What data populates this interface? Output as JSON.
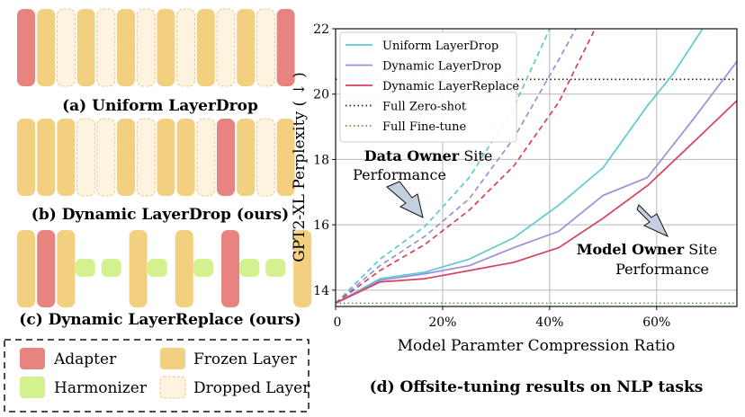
{
  "panels": {
    "a_caption": "(a) Uniform LayerDrop",
    "b_caption": "(b) Dynamic LayerDrop (ours)",
    "c_caption": "(c) Dynamic LayerReplace (ours)",
    "a_layers": [
      "adapter",
      "frozen",
      "dropped",
      "frozen",
      "dropped",
      "frozen",
      "dropped",
      "frozen",
      "dropped",
      "frozen",
      "dropped",
      "frozen",
      "dropped",
      "adapter"
    ],
    "b_layers": [
      "frozen",
      "frozen",
      "frozen",
      "dropped",
      "dropped",
      "frozen",
      "dropped",
      "frozen",
      "frozen",
      "dropped",
      "adapter",
      "frozen",
      "dropped",
      "frozen"
    ],
    "c_layers": [
      "frozen",
      "adapter",
      "frozen",
      "harmonizer",
      "harmonizer",
      "frozen",
      "harmonizer",
      "frozen",
      "harmonizer",
      "adapter",
      "harmonizer",
      "harmonizer",
      "frozen"
    ]
  },
  "legend": {
    "adapter": "Adapter",
    "frozen": "Frozen Layer",
    "harmonizer": "Harmonizer",
    "dropped": "Dropped Layer"
  },
  "colors": {
    "adapter": "#e8847f",
    "frozen": "#f3cf80",
    "harmonizer": "#d3f28f",
    "dropped": "#fdf3df",
    "dropped_border": "#eec587"
  },
  "caption_d": "(d) Offsite-tuning results on NLP tasks",
  "annotations": {
    "data_owner_bold": "Data Owner",
    "data_owner_rest": " Site",
    "data_owner_line2": "Performance",
    "model_owner_bold": "Model Owner",
    "model_owner_rest": " Site",
    "model_owner_line2": "Performance"
  },
  "chart_data": {
    "type": "line",
    "xlabel": "Model Paramter Compression Ratio",
    "ylabel": "GPT2-XL Perplexity ( ↓ )",
    "xlim": [
      0,
      75
    ],
    "ylim": [
      13.5,
      22
    ],
    "x_ticks": [
      0,
      20,
      40,
      60
    ],
    "x_tick_labels": [
      "0",
      "20%",
      "40%",
      "60%"
    ],
    "y_ticks": [
      14,
      16,
      18,
      20,
      22
    ],
    "y_tick_labels": [
      "14",
      "16",
      "18",
      "20",
      "22"
    ],
    "grid": true,
    "legend_position": "top-left",
    "series": [
      {
        "name": "Uniform LayerDrop",
        "color": "#5ec9cf",
        "solid": {
          "x": [
            0,
            8.3,
            16.7,
            25,
            33.3,
            41.7,
            50,
            58.3,
            63,
            69
          ],
          "y": [
            13.6,
            14.35,
            14.55,
            14.95,
            15.6,
            16.6,
            17.75,
            19.65,
            20.6,
            22.1
          ]
        },
        "dashed": {
          "x": [
            0,
            8.3,
            16.7,
            25,
            33.3,
            41.7
          ],
          "y": [
            13.6,
            14.95,
            15.95,
            17.45,
            19.6,
            22.6
          ]
        }
      },
      {
        "name": "Dynamic LayerDrop",
        "color": "#9b8fdc",
        "solid": {
          "x": [
            0,
            8.3,
            16.7,
            25,
            33.3,
            41.7,
            50,
            58.3,
            66.7,
            75
          ],
          "y": [
            13.6,
            14.3,
            14.5,
            14.75,
            15.3,
            15.8,
            16.9,
            17.45,
            19.2,
            21.0
          ]
        },
        "dashed": {
          "x": [
            0,
            8.3,
            16.7,
            25,
            33.3,
            41.7,
            50
          ],
          "y": [
            13.6,
            14.75,
            15.65,
            16.8,
            18.65,
            21.05,
            23.5
          ]
        }
      },
      {
        "name": "Dynamic LayerReplace",
        "color": "#d8405e",
        "solid": {
          "x": [
            0,
            8.3,
            16.7,
            25,
            33.3,
            41.7,
            50,
            58.3,
            66.7,
            75
          ],
          "y": [
            13.6,
            14.25,
            14.35,
            14.6,
            14.85,
            15.3,
            16.2,
            17.2,
            18.5,
            19.8
          ]
        },
        "dashed": {
          "x": [
            0,
            8.3,
            16.7,
            25,
            33.3,
            41.7,
            50
          ],
          "y": [
            13.6,
            14.6,
            15.4,
            16.45,
            17.8,
            19.75,
            22.5
          ]
        }
      }
    ],
    "reference_lines": [
      {
        "name": "Full Zero-shot",
        "y": 20.45,
        "color": "#222222",
        "style": "dotted"
      },
      {
        "name": "Full Fine-tune",
        "y": 13.6,
        "color": "#4a9e3a",
        "style": "dotted"
      }
    ]
  }
}
